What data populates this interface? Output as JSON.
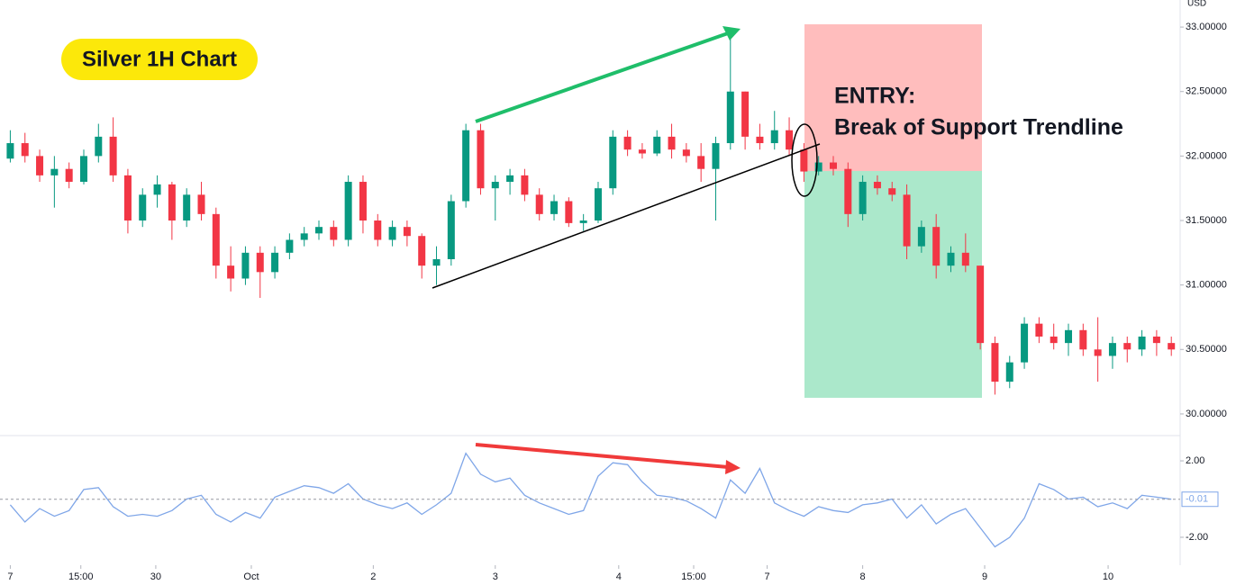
{
  "chart_data": [
    {
      "type": "candlestick",
      "title": "Silver 1H Chart",
      "y_label": "USD",
      "annotations": [
        "ENTRY:",
        "Break of Support Trendline"
      ],
      "up_color": "#089981",
      "down_color": "#f23645",
      "xlim": [
        -0.7,
        79.6
      ],
      "ylim": [
        29.86,
        33.21
      ],
      "yticks": [
        {
          "value": 30,
          "label": "30.00000"
        },
        {
          "value": 30.5,
          "label": "30.50000"
        },
        {
          "value": 31,
          "label": "31.00000"
        },
        {
          "value": 31.5,
          "label": "31.50000"
        },
        {
          "value": 32,
          "label": "32.00000"
        },
        {
          "value": 32.5,
          "label": "32.50000"
        },
        {
          "value": 33,
          "label": "33.00000"
        }
      ],
      "open": [
        31.98,
        32.1,
        32.0,
        31.85,
        31.9,
        31.8,
        32.0,
        32.15,
        31.85,
        31.5,
        31.7,
        31.78,
        31.5,
        31.7,
        31.55,
        31.15,
        31.05,
        31.25,
        31.1,
        31.25,
        31.35,
        31.4,
        31.45,
        31.35,
        31.8,
        31.5,
        31.35,
        31.45,
        31.38,
        31.15,
        31.2,
        31.65,
        32.2,
        31.75,
        31.8,
        31.85,
        31.7,
        31.55,
        31.65,
        31.48,
        31.5,
        31.75,
        32.15,
        32.05,
        32.02,
        32.15,
        32.05,
        32.0,
        31.9,
        32.1,
        32.5,
        32.15,
        32.1,
        32.2,
        32.05,
        31.88,
        31.95,
        31.9,
        31.55,
        31.8,
        31.75,
        31.7,
        31.3,
        31.45,
        31.15,
        31.25,
        31.15,
        30.55,
        30.25,
        30.4,
        30.7,
        30.6,
        30.55,
        30.65,
        30.5,
        30.45,
        30.55,
        30.5,
        30.6,
        30.55
      ],
      "high": [
        32.2,
        32.18,
        32.05,
        32.0,
        31.95,
        32.05,
        32.25,
        32.3,
        31.9,
        31.75,
        31.85,
        31.8,
        31.75,
        31.8,
        31.6,
        31.3,
        31.3,
        31.3,
        31.3,
        31.4,
        31.45,
        31.5,
        31.5,
        31.85,
        31.85,
        31.55,
        31.5,
        31.5,
        31.4,
        31.3,
        31.7,
        32.25,
        32.25,
        31.85,
        31.9,
        31.9,
        31.75,
        31.7,
        31.68,
        31.55,
        31.8,
        32.2,
        32.2,
        32.1,
        32.2,
        32.25,
        32.1,
        32.1,
        32.15,
        32.95,
        32.5,
        32.25,
        32.35,
        32.3,
        32.1,
        32.0,
        32.0,
        31.95,
        31.85,
        31.85,
        31.8,
        31.78,
        31.5,
        31.55,
        31.3,
        31.4,
        31.15,
        30.6,
        30.45,
        30.75,
        30.75,
        30.7,
        30.7,
        30.7,
        30.75,
        30.6,
        30.6,
        30.65,
        30.65,
        30.6
      ],
      "low": [
        31.95,
        31.95,
        31.8,
        31.6,
        31.75,
        31.78,
        31.95,
        31.8,
        31.4,
        31.45,
        31.6,
        31.35,
        31.45,
        31.5,
        31.05,
        30.95,
        31.0,
        30.9,
        31.05,
        31.2,
        31.3,
        31.35,
        31.3,
        31.3,
        31.4,
        31.3,
        31.3,
        31.3,
        31.05,
        31.0,
        31.15,
        31.6,
        31.7,
        31.5,
        31.7,
        31.65,
        31.5,
        31.5,
        31.45,
        31.42,
        31.48,
        31.7,
        32.0,
        31.98,
        32.0,
        31.98,
        31.95,
        31.8,
        31.5,
        32.05,
        32.05,
        32.05,
        32.05,
        32.0,
        31.8,
        31.85,
        31.85,
        31.45,
        31.5,
        31.7,
        31.65,
        31.2,
        31.25,
        31.05,
        31.1,
        31.1,
        30.5,
        30.15,
        30.2,
        30.35,
        30.55,
        30.5,
        30.45,
        30.45,
        30.25,
        30.35,
        30.4,
        30.45,
        30.45,
        30.45
      ],
      "close": [
        32.1,
        32.0,
        31.85,
        31.9,
        31.8,
        32.0,
        32.15,
        31.85,
        31.5,
        31.7,
        31.78,
        31.5,
        31.7,
        31.55,
        31.15,
        31.05,
        31.25,
        31.1,
        31.25,
        31.35,
        31.4,
        31.45,
        31.35,
        31.8,
        31.5,
        31.35,
        31.45,
        31.38,
        31.15,
        31.2,
        31.65,
        32.2,
        31.75,
        31.8,
        31.85,
        31.7,
        31.55,
        31.65,
        31.48,
        31.5,
        31.75,
        32.15,
        32.05,
        32.02,
        32.15,
        32.05,
        32.0,
        31.9,
        32.1,
        32.5,
        32.15,
        32.1,
        32.2,
        32.05,
        31.88,
        31.95,
        31.9,
        31.55,
        31.8,
        31.75,
        31.7,
        31.3,
        31.45,
        31.15,
        31.25,
        31.15,
        30.55,
        30.25,
        30.4,
        30.7,
        30.6,
        30.55,
        30.65,
        30.5,
        30.45,
        30.55,
        30.5,
        30.6,
        30.55,
        30.5
      ]
    },
    {
      "type": "line",
      "color": "#7fa6e8",
      "xlim": [
        -0.7,
        79.6
      ],
      "ylim": [
        -3.32,
        3.18
      ],
      "yticks": [
        {
          "value": -2,
          "label": "-2.00"
        },
        {
          "value": 2,
          "label": "2.00"
        }
      ],
      "xticks": [
        {
          "value": 0,
          "label": "7"
        },
        {
          "value": 4.8,
          "label": "15:00"
        },
        {
          "value": 9.9,
          "label": "30"
        },
        {
          "value": 16.4,
          "label": "Oct"
        },
        {
          "value": 24.7,
          "label": "2"
        },
        {
          "value": 33,
          "label": "3"
        },
        {
          "value": 41.4,
          "label": "4"
        },
        {
          "value": 46.5,
          "label": "15:00"
        },
        {
          "value": 51.5,
          "label": "7"
        },
        {
          "value": 58,
          "label": "8"
        },
        {
          "value": 66.3,
          "label": "9"
        },
        {
          "value": 74.7,
          "label": "10"
        }
      ],
      "values": [
        -0.3,
        -1.2,
        -0.5,
        -0.9,
        -0.6,
        0.5,
        0.6,
        -0.4,
        -0.9,
        -0.8,
        -0.9,
        -0.6,
        0.0,
        0.2,
        -0.8,
        -1.2,
        -0.7,
        -1.0,
        0.1,
        0.4,
        0.7,
        0.6,
        0.3,
        0.8,
        0.0,
        -0.3,
        -0.5,
        -0.2,
        -0.8,
        -0.3,
        0.3,
        2.4,
        1.3,
        0.9,
        1.1,
        0.2,
        -0.2,
        -0.5,
        -0.8,
        -0.6,
        1.2,
        1.9,
        1.8,
        0.9,
        0.2,
        0.1,
        -0.1,
        -0.5,
        -1.0,
        1.0,
        0.3,
        1.6,
        -0.2,
        -0.6,
        -0.9,
        -0.4,
        -0.6,
        -0.7,
        -0.3,
        -0.2,
        0.0,
        -1.0,
        -0.3,
        -1.3,
        -0.8,
        -0.5,
        -1.5,
        -2.5,
        -2.0,
        -1.0,
        0.8,
        0.5,
        0.0,
        0.1,
        -0.4,
        -0.2,
        -0.5,
        0.2,
        0.1,
        -0.01
      ]
    }
  ]
}
